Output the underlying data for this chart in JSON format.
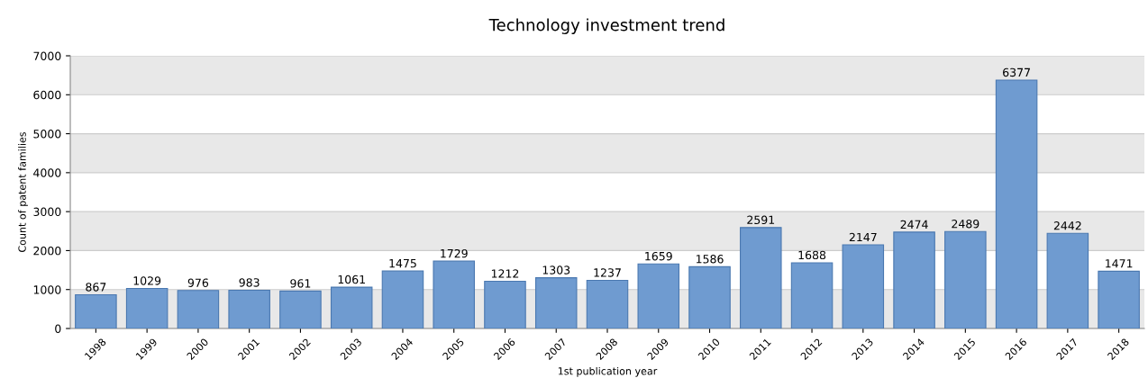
{
  "chart_data": {
    "type": "bar",
    "title": "Technology investment trend",
    "xlabel": "1st publication year",
    "ylabel": "Count of patent families",
    "categories": [
      "1998",
      "1999",
      "2000",
      "2001",
      "2002",
      "2003",
      "2004",
      "2005",
      "2006",
      "2007",
      "2008",
      "2009",
      "2010",
      "2011",
      "2012",
      "2013",
      "2014",
      "2015",
      "2016",
      "2017",
      "2018"
    ],
    "values": [
      867,
      1029,
      976,
      983,
      961,
      1061,
      1475,
      1729,
      1212,
      1303,
      1237,
      1659,
      1586,
      2591,
      1688,
      2147,
      2474,
      2489,
      6377,
      2442,
      1471
    ],
    "color": "#6f9bd0",
    "data_labels": true,
    "ylim": [
      0,
      7000
    ],
    "yticks": [
      0,
      1000,
      2000,
      3000,
      4000,
      5000,
      6000,
      7000
    ],
    "grid": "y",
    "bands": [
      {
        "axis": "y",
        "from": 0,
        "to": 1000,
        "color": "#e8e8e8"
      },
      {
        "axis": "y",
        "from": 2000,
        "to": 3000,
        "color": "#e8e8e8"
      },
      {
        "axis": "y",
        "from": 4000,
        "to": 5000,
        "color": "#e8e8e8"
      },
      {
        "axis": "y",
        "from": 6000,
        "to": 7000,
        "color": "#e8e8e8"
      }
    ]
  }
}
